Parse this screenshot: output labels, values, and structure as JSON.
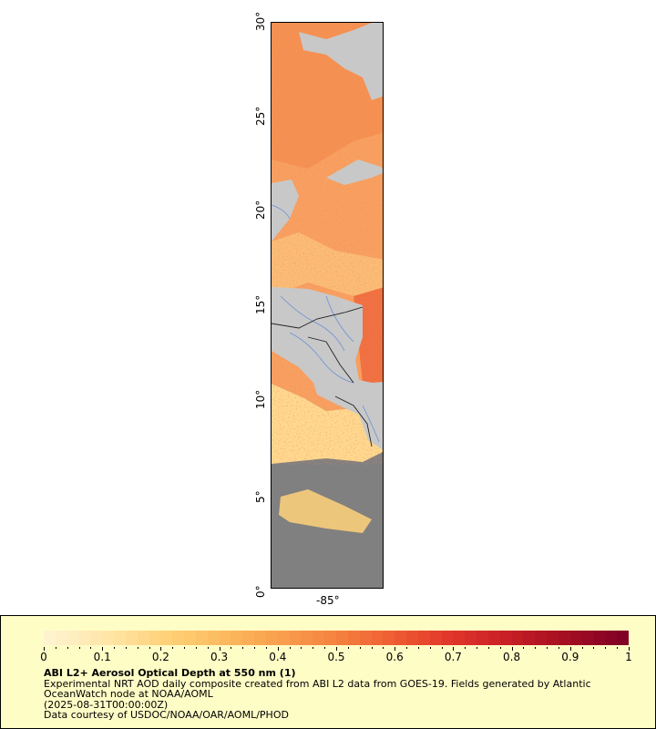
{
  "map": {
    "lat_axis": {
      "ticks": [
        {
          "value": 0,
          "label": "0°"
        },
        {
          "value": 5,
          "label": "5°"
        },
        {
          "value": 10,
          "label": "10°"
        },
        {
          "value": 15,
          "label": "15°"
        },
        {
          "value": 20,
          "label": "20°"
        },
        {
          "value": 25,
          "label": "25°"
        },
        {
          "value": 30,
          "label": "30°"
        }
      ],
      "range": [
        0,
        30
      ]
    },
    "lon_axis": {
      "ticks": [
        {
          "value": -85,
          "label": "-85°"
        }
      ]
    },
    "colors": {
      "land": "#c8c8c8",
      "no_data": "#808080",
      "rivers": "#6a8fd6",
      "borders": "#222222"
    }
  },
  "legend": {
    "colorbar_min": 0,
    "colorbar_max": 1,
    "tick_labels": [
      "0",
      "0.1",
      "0.2",
      "0.3",
      "0.4",
      "0.5",
      "0.6",
      "0.7",
      "0.8",
      "0.9",
      "1"
    ],
    "colormap": [
      "#fff3cf",
      "#ffe6a8",
      "#ffd27a",
      "#fcbb5e",
      "#f9a04e",
      "#f5823f",
      "#ef5d33",
      "#e0362a",
      "#c81e26",
      "#a50f22",
      "#800026"
    ]
  },
  "captions": {
    "title": "ABI L2+ Aerosol Optical Depth at 550 nm (1)",
    "line1": "Experimental NRT AOD daily composite created from ABI L2 data from GOES-19. Fields generated by Atlantic",
    "line2": "OceanWatch node at NOAA/AOML",
    "line3": "(2025-08-31T00:00:00Z)",
    "line4": "Data courtesy of USDOC/NOAA/OAR/AOML/PHOD"
  }
}
